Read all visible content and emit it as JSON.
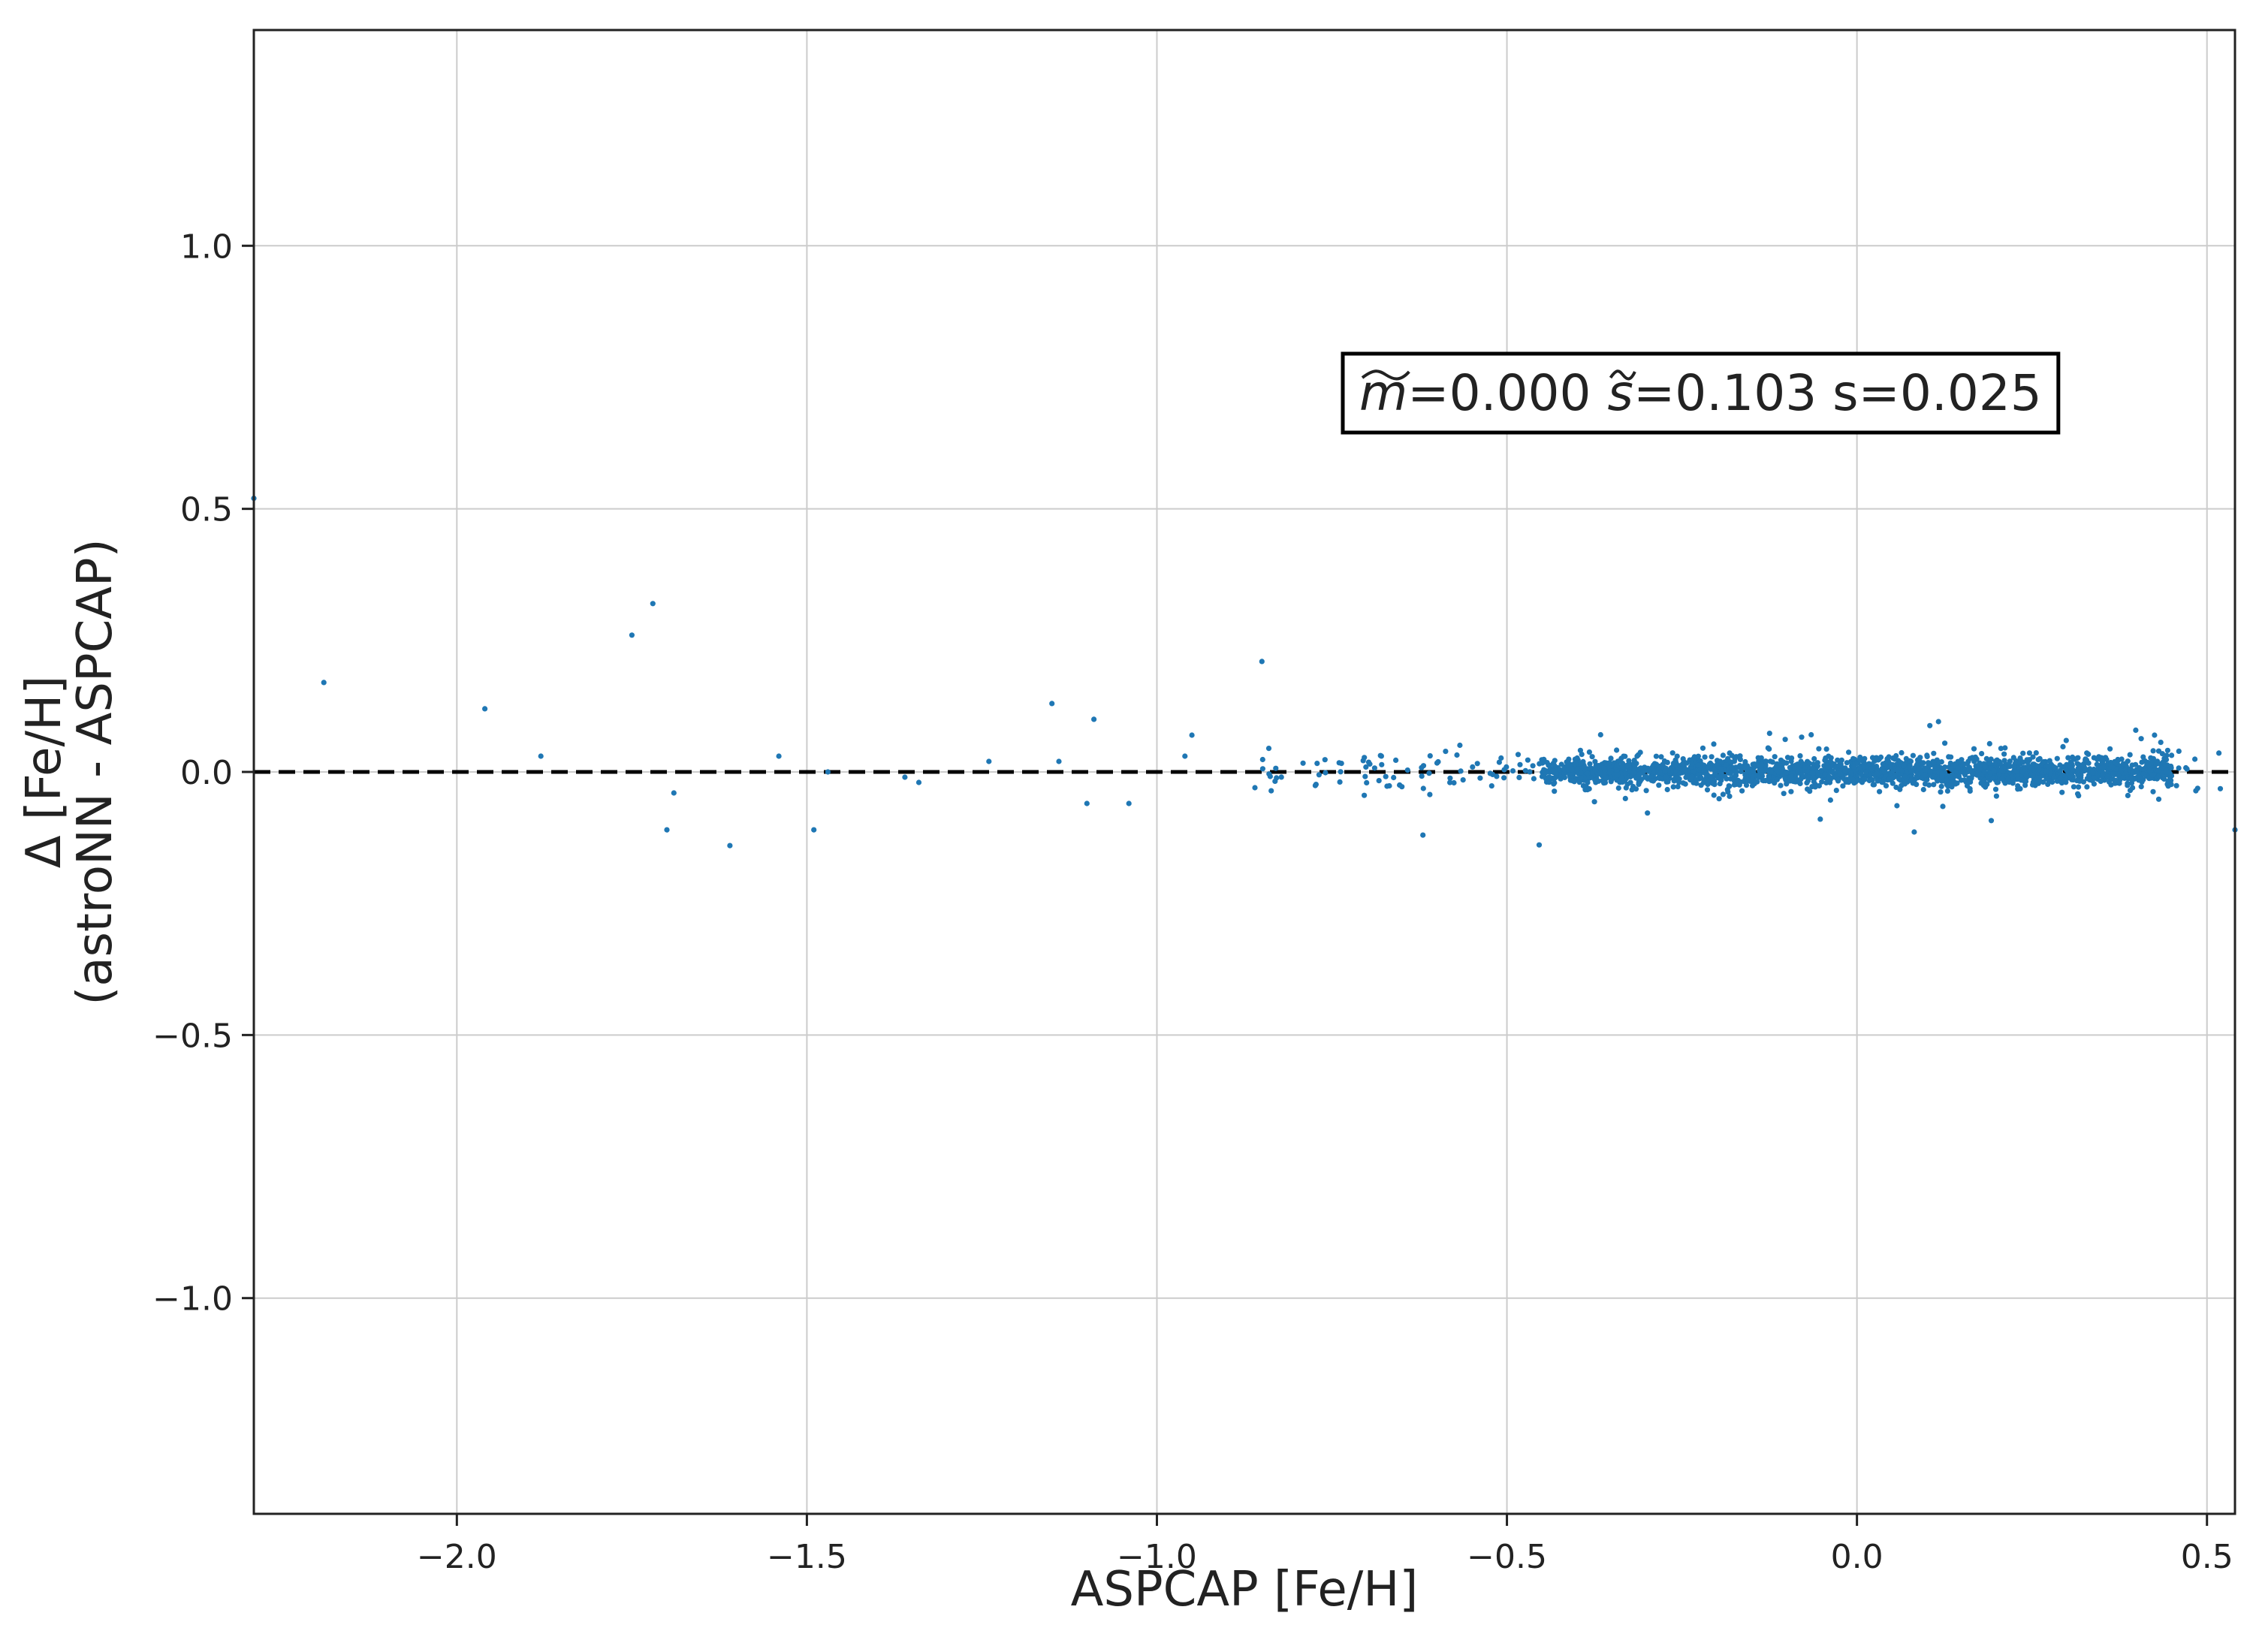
{
  "chart_data": {
    "type": "scatter",
    "xlabel": "ASPCAP [Fe/H]",
    "ylabel_line1": "Δ [Fe/H]",
    "ylabel_line2": "(astroNN - ASPCAP)",
    "xlim": [
      -2.29,
      0.54
    ],
    "ylim": [
      -1.41,
      1.41
    ],
    "xticks": [
      -2.0,
      -1.5,
      -1.0,
      -0.5,
      0.0,
      0.5
    ],
    "xtick_labels": [
      "−2.0",
      "−1.5",
      "−1.0",
      "−0.5",
      "0.0",
      "0.5"
    ],
    "yticks": [
      1.0,
      0.5,
      0.0,
      -0.5,
      -1.0
    ],
    "ytick_labels": [
      "1.0",
      "0.5",
      "0.0",
      "−0.5",
      "−1.0"
    ],
    "grid": true,
    "reference_line": {
      "y": 0.0,
      "style": "dashed",
      "color": "#000000"
    },
    "annotation": {
      "m_symbol": "m",
      "m_value": "=0.000",
      "s_symbol": "s",
      "s_value": "=0.103",
      "tail": " s=0.025",
      "placement": "upper-right"
    },
    "point_color": "#1f77b4",
    "outlier_points": [
      {
        "x": -2.29,
        "y": 0.52
      },
      {
        "x": -2.19,
        "y": 0.17
      },
      {
        "x": -1.96,
        "y": 0.12
      },
      {
        "x": -1.88,
        "y": 0.03
      },
      {
        "x": -1.75,
        "y": 0.26
      },
      {
        "x": -1.72,
        "y": 0.32
      },
      {
        "x": -1.7,
        "y": -0.11
      },
      {
        "x": -1.69,
        "y": -0.04
      },
      {
        "x": -1.61,
        "y": -0.14
      },
      {
        "x": -1.54,
        "y": 0.03
      },
      {
        "x": -1.49,
        "y": -0.11
      },
      {
        "x": -1.47,
        "y": 0.0
      },
      {
        "x": -1.36,
        "y": -0.01
      },
      {
        "x": -1.34,
        "y": -0.02
      },
      {
        "x": -1.24,
        "y": 0.02
      },
      {
        "x": -1.15,
        "y": 0.13
      },
      {
        "x": -1.14,
        "y": 0.02
      },
      {
        "x": -1.1,
        "y": -0.06
      },
      {
        "x": -1.09,
        "y": 0.1
      },
      {
        "x": -1.04,
        "y": -0.06
      },
      {
        "x": -0.96,
        "y": 0.03
      },
      {
        "x": -0.95,
        "y": 0.07
      },
      {
        "x": -0.86,
        "y": -0.03
      },
      {
        "x": -0.85,
        "y": 0.21
      },
      {
        "x": -0.62,
        "y": -0.12
      },
      {
        "x": 0.54,
        "y": -0.11
      }
    ],
    "cluster": {
      "count": 2300,
      "x_range": [
        -0.85,
        0.52
      ],
      "dense_x_range": [
        -0.45,
        0.45
      ],
      "y_center": 0.0,
      "y_spread": 0.025,
      "seed": 7
    }
  }
}
